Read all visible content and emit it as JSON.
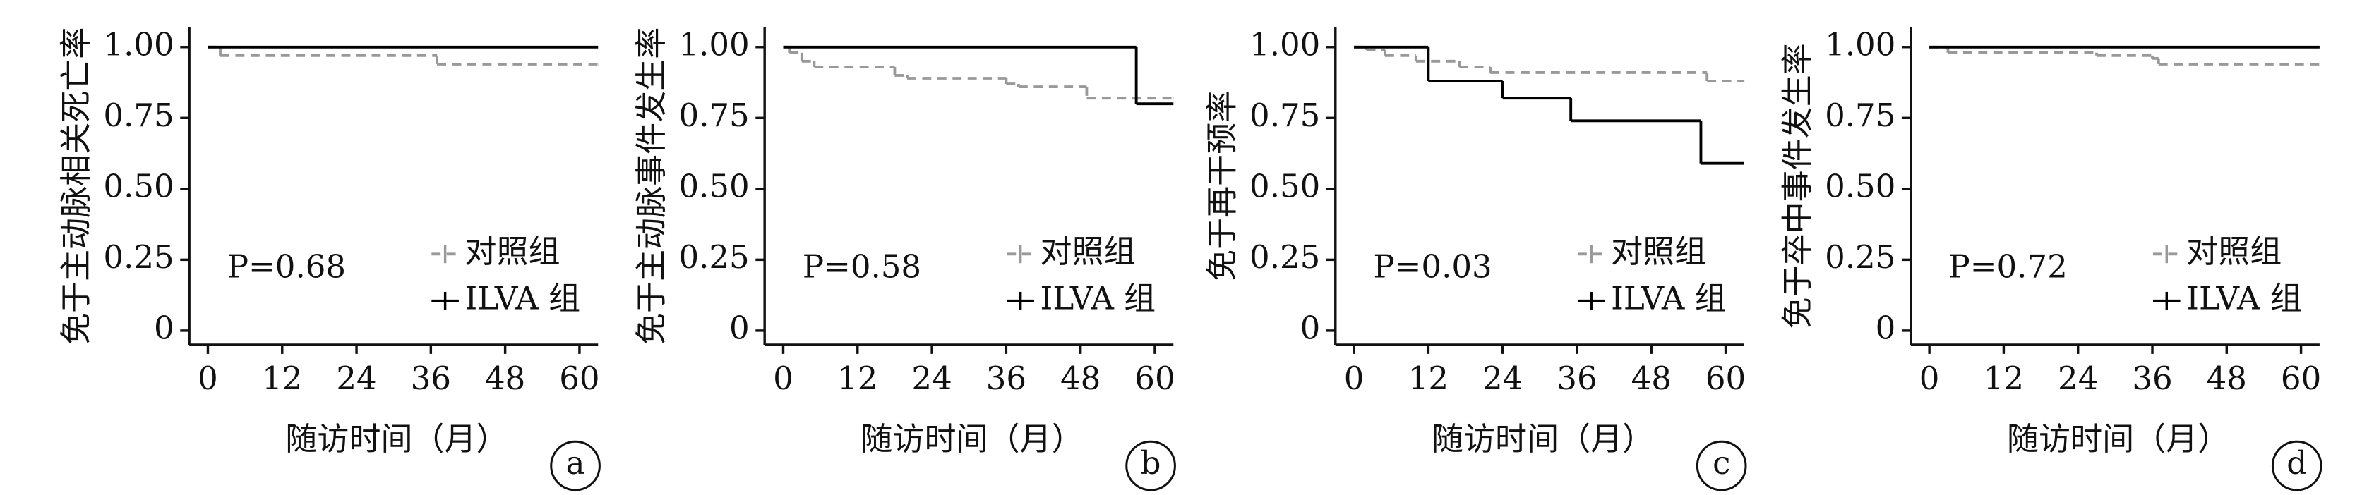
{
  "chart_data": [
    {
      "type": "line",
      "panel": "a",
      "y_label": "免于主动脉相关死亡率",
      "x_label": "随访时间（月）",
      "annotation": "P=0.68",
      "xlim": [
        -3,
        63
      ],
      "xticks": [
        0,
        12,
        24,
        36,
        48,
        60
      ],
      "ylim": [
        -0.05,
        1.07
      ],
      "yticks": [
        0,
        0.25,
        {
          "value": 0.5,
          "label": "0.50"
        },
        0.75,
        {
          "value": 1,
          "label": "1.00"
        }
      ],
      "series": [
        {
          "name": "对照组",
          "color": "#999999",
          "linestyle": "dashed",
          "x": [
            0,
            2,
            37,
            63
          ],
          "values": [
            1,
            0.97,
            0.94,
            0.94
          ]
        },
        {
          "name": "ILVA 组",
          "color": "#000000",
          "linestyle": "solid",
          "x": [
            0,
            63
          ],
          "values": [
            1,
            1
          ]
        }
      ]
    },
    {
      "type": "line",
      "panel": "b",
      "y_label": "免于主动脉事件发生率",
      "x_label": "随访时间（月）",
      "annotation": "P=0.58",
      "xlim": [
        -3,
        63
      ],
      "xticks": [
        0,
        12,
        24,
        36,
        48,
        60
      ],
      "ylim": [
        -0.05,
        1.07
      ],
      "yticks": [
        0,
        0.25,
        {
          "value": 0.5,
          "label": "0.50"
        },
        0.75,
        {
          "value": 1,
          "label": "1.00"
        }
      ],
      "series": [
        {
          "name": "对照组",
          "color": "#999999",
          "linestyle": "dashed",
          "x": [
            0,
            1,
            3,
            5,
            18,
            20,
            36,
            38,
            49,
            63
          ],
          "values": [
            1,
            0.98,
            0.95,
            0.93,
            0.9,
            0.89,
            0.87,
            0.86,
            0.82,
            0.82
          ]
        },
        {
          "name": "ILVA 组",
          "color": "#000000",
          "linestyle": "solid",
          "x": [
            0,
            57,
            63
          ],
          "values": [
            1,
            0.8,
            0.8
          ]
        }
      ]
    },
    {
      "type": "line",
      "panel": "c",
      "y_label": "免于再干预率",
      "x_label": "随访时间（月）",
      "annotation": "P=0.03",
      "xlim": [
        -3,
        63
      ],
      "xticks": [
        0,
        12,
        24,
        36,
        48,
        60
      ],
      "ylim": [
        -0.05,
        1.07
      ],
      "yticks": [
        0,
        0.25,
        {
          "value": 0.5,
          "label": "0.50"
        },
        0.75,
        {
          "value": 1,
          "label": "1.00"
        }
      ],
      "series": [
        {
          "name": "对照组",
          "color": "#999999",
          "linestyle": "dashed",
          "x": [
            0,
            2,
            5,
            10,
            17,
            22,
            57,
            63
          ],
          "values": [
            1,
            0.99,
            0.97,
            0.95,
            0.93,
            0.91,
            0.88,
            0.88
          ]
        },
        {
          "name": "ILVA 组",
          "color": "#000000",
          "linestyle": "solid",
          "x": [
            0,
            12,
            24,
            35,
            56,
            63
          ],
          "values": [
            1,
            0.88,
            0.82,
            0.74,
            0.59,
            0.59
          ]
        }
      ]
    },
    {
      "type": "line",
      "panel": "d",
      "y_label": "免于卒中事件发生率",
      "x_label": "随访时间（月）",
      "annotation": "P=0.72",
      "xlim": [
        -3,
        63
      ],
      "xticks": [
        0,
        12,
        24,
        36,
        48,
        60
      ],
      "ylim": [
        -0.05,
        1.07
      ],
      "yticks": [
        0,
        0.25,
        {
          "value": 0.5,
          "label": "0.50"
        },
        0.75,
        {
          "value": 1,
          "label": "1.00"
        }
      ],
      "series": [
        {
          "name": "对照组",
          "color": "#999999",
          "linestyle": "dashed",
          "x": [
            0,
            3,
            27,
            36,
            37,
            63
          ],
          "values": [
            1,
            0.98,
            0.97,
            0.96,
            0.94,
            0.94
          ]
        },
        {
          "name": "ILVA 组",
          "color": "#000000",
          "linestyle": "solid",
          "x": [
            0,
            63
          ],
          "values": [
            1,
            1
          ]
        }
      ]
    }
  ]
}
